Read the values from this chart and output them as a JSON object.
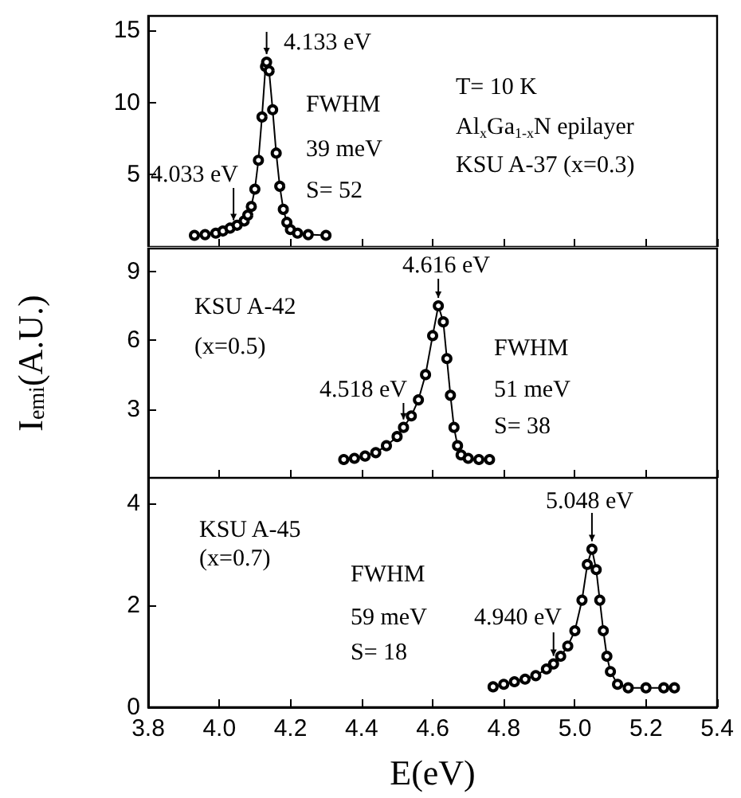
{
  "chart_data": [
    {
      "type": "line",
      "color": "#000000",
      "marker": "circle",
      "tick_labels": "y",
      "xlim": [
        3.8,
        5.4
      ],
      "xticks": [
        3.8,
        4.0,
        4.2,
        4.4,
        4.6,
        4.8,
        5.0,
        5.2,
        5.4
      ],
      "ylim": [
        0,
        16
      ],
      "yticks": [
        5,
        10,
        15
      ],
      "x": [
        3.93,
        3.96,
        3.99,
        4.01,
        4.03,
        4.05,
        4.07,
        4.08,
        4.09,
        4.1,
        4.11,
        4.12,
        4.13,
        4.133,
        4.14,
        4.15,
        4.16,
        4.17,
        4.18,
        4.19,
        4.2,
        4.22,
        4.25,
        4.3
      ],
      "values": [
        0.8,
        0.85,
        0.95,
        1.1,
        1.3,
        1.5,
        1.8,
        2.2,
        2.8,
        4.0,
        6.0,
        9.0,
        12.5,
        12.8,
        12.2,
        9.5,
        6.5,
        4.2,
        2.6,
        1.7,
        1.2,
        0.95,
        0.85,
        0.8
      ],
      "annotations": [
        {
          "text": "4.133 eV",
          "x": 4.133,
          "y": 12.8
        },
        {
          "text": "4.033 eV",
          "x": 4.04,
          "y": 1.3
        },
        "FWHM",
        "39 meV",
        "S= 52",
        "T= 10 K",
        "Al$_{x}$Ga$_{1-x}$N epilayer",
        "KSU A-37 (x=0.3)"
      ]
    },
    {
      "type": "line",
      "color": "#000000",
      "marker": "circle",
      "tick_labels": "y",
      "xlim": [
        3.8,
        5.4
      ],
      "xticks": [
        3.8,
        4.0,
        4.2,
        4.4,
        4.6,
        4.8,
        5.0,
        5.2,
        5.4
      ],
      "ylim": [
        0,
        10
      ],
      "yticks": [
        3,
        6,
        9
      ],
      "ylabel": "I$_{emi}$(A.U.)",
      "x": [
        4.35,
        4.38,
        4.41,
        4.44,
        4.47,
        4.5,
        4.518,
        4.54,
        4.56,
        4.58,
        4.6,
        4.616,
        4.63,
        4.64,
        4.65,
        4.66,
        4.67,
        4.68,
        4.7,
        4.73,
        4.76
      ],
      "values": [
        0.8,
        0.85,
        0.95,
        1.1,
        1.4,
        1.8,
        2.2,
        2.7,
        3.4,
        4.5,
        6.2,
        7.5,
        6.8,
        5.2,
        3.6,
        2.2,
        1.4,
        1.0,
        0.85,
        0.8,
        0.8
      ],
      "annotations": [
        {
          "text": "4.616 eV",
          "x": 4.616,
          "y": 7.5
        },
        {
          "text": "4.518 eV",
          "x": 4.518,
          "y": 2.2
        },
        "KSU A-42",
        "(x=0.5)",
        "FWHM",
        "51 meV",
        "S= 38"
      ]
    },
    {
      "type": "line",
      "color": "#000000",
      "marker": "circle",
      "xlim": [
        3.8,
        5.4
      ],
      "ylim": [
        0,
        4.5
      ],
      "yticks": [
        0,
        2,
        4
      ],
      "xlabel": "E(eV)",
      "xticks": [
        3.8,
        {
          "value": 4,
          "label": "4.0"
        },
        4.2,
        4.4,
        4.6,
        4.8,
        {
          "value": 5,
          "label": "5.0"
        },
        5.2,
        5.4
      ],
      "x": [
        4.77,
        4.8,
        4.83,
        4.86,
        4.89,
        4.92,
        4.94,
        4.96,
        4.98,
        5.0,
        5.02,
        5.035,
        5.048,
        5.06,
        5.07,
        5.08,
        5.09,
        5.1,
        5.12,
        5.15,
        5.2,
        5.25,
        5.28
      ],
      "values": [
        0.4,
        0.45,
        0.5,
        0.55,
        0.62,
        0.75,
        0.85,
        1.0,
        1.2,
        1.5,
        2.1,
        2.8,
        3.1,
        2.7,
        2.1,
        1.5,
        1.0,
        0.7,
        0.45,
        0.38,
        0.38,
        0.38,
        0.38
      ],
      "annotations": [
        {
          "text": "5.048 eV",
          "x": 5.048,
          "y": 3.1
        },
        {
          "text": "4.940 eV",
          "x": 4.94,
          "y": 0.85
        },
        "KSU A-45",
        "(x=0.7)",
        "FWHM",
        "59 meV",
        "S= 18"
      ]
    }
  ]
}
